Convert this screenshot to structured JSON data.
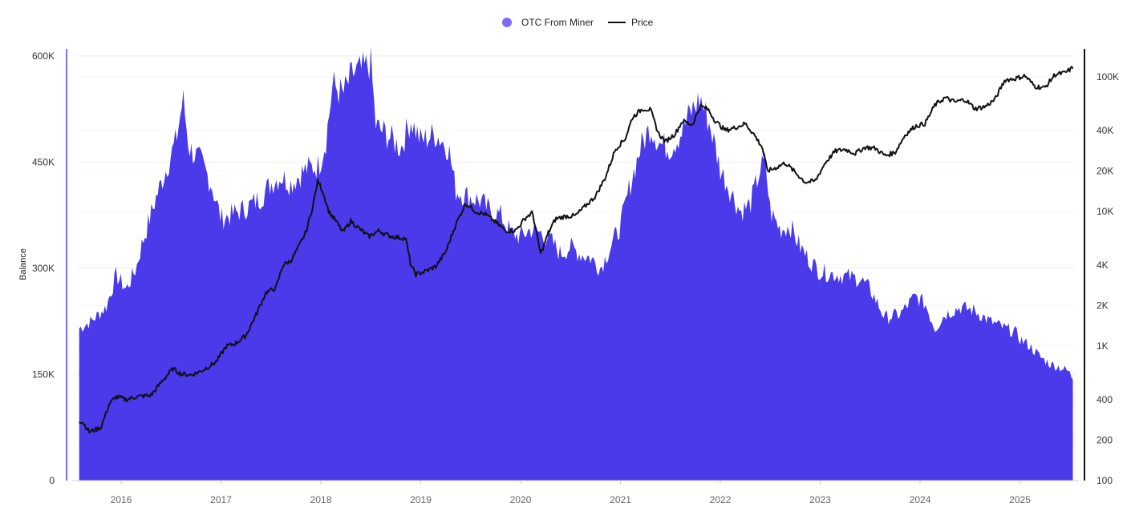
{
  "chart_data": {
    "type": "area",
    "legend": {
      "placement": "top-center",
      "items": [
        {
          "label": "OTC From Miner",
          "marker": "circle",
          "color": "#7b6cf0"
        },
        {
          "label": "Price",
          "marker": "line",
          "color": "#111111"
        }
      ]
    },
    "ylabel": "Balance",
    "y_left": {
      "ticks": [
        0,
        150000,
        300000,
        450000,
        600000
      ],
      "tick_labels": [
        "0",
        "150K",
        "300K",
        "450K",
        "600K"
      ],
      "range": [
        0,
        610000
      ]
    },
    "y_right": {
      "scale": "log",
      "ticks": [
        100,
        200,
        400,
        1000,
        2000,
        4000,
        10000,
        20000,
        40000,
        100000
      ],
      "tick_labels": [
        "100",
        "200",
        "400",
        "1K",
        "2K",
        "4K",
        "10K",
        "20K",
        "40K",
        "100K"
      ]
    },
    "x": {
      "range": [
        2015.55,
        2025.55
      ],
      "ticks": [
        2016,
        2017,
        2018,
        2019,
        2020,
        2021,
        2022,
        2023,
        2024,
        2025
      ],
      "tick_labels": [
        "2016",
        "2017",
        "2018",
        "2019",
        "2020",
        "2021",
        "2022",
        "2023",
        "2024",
        "2025"
      ]
    },
    "grid": true,
    "series": [
      {
        "name": "OTC From Miner",
        "axis": "left",
        "type": "area",
        "color": "#4a3aea",
        "points": [
          [
            2015.58,
            215000
          ],
          [
            2015.7,
            225000
          ],
          [
            2015.85,
            245000
          ],
          [
            2015.95,
            290000
          ],
          [
            2016.05,
            270000
          ],
          [
            2016.15,
            300000
          ],
          [
            2016.2,
            330000
          ],
          [
            2016.35,
            400000
          ],
          [
            2016.45,
            440000
          ],
          [
            2016.55,
            480000
          ],
          [
            2016.62,
            540000
          ],
          [
            2016.68,
            470000
          ],
          [
            2016.8,
            450000
          ],
          [
            2016.9,
            420000
          ],
          [
            2017.0,
            370000
          ],
          [
            2017.1,
            375000
          ],
          [
            2017.25,
            385000
          ],
          [
            2017.4,
            400000
          ],
          [
            2017.5,
            420000
          ],
          [
            2017.6,
            430000
          ],
          [
            2017.7,
            420000
          ],
          [
            2017.85,
            440000
          ],
          [
            2017.98,
            445000
          ],
          [
            2018.05,
            480000
          ],
          [
            2018.12,
            560000
          ],
          [
            2018.22,
            545000
          ],
          [
            2018.32,
            575000
          ],
          [
            2018.42,
            580000
          ],
          [
            2018.5,
            590000
          ],
          [
            2018.55,
            500000
          ],
          [
            2018.65,
            490000
          ],
          [
            2018.8,
            470000
          ],
          [
            2018.9,
            510000
          ],
          [
            2019.0,
            480000
          ],
          [
            2019.15,
            490000
          ],
          [
            2019.28,
            470000
          ],
          [
            2019.35,
            410000
          ],
          [
            2019.5,
            400000
          ],
          [
            2019.6,
            395000
          ],
          [
            2019.7,
            380000
          ],
          [
            2019.8,
            375000
          ],
          [
            2019.9,
            350000
          ],
          [
            2020.0,
            345000
          ],
          [
            2020.1,
            355000
          ],
          [
            2020.2,
            350000
          ],
          [
            2020.3,
            340000
          ],
          [
            2020.4,
            320000
          ],
          [
            2020.5,
            330000
          ],
          [
            2020.6,
            320000
          ],
          [
            2020.7,
            315000
          ],
          [
            2020.8,
            300000
          ],
          [
            2020.9,
            330000
          ],
          [
            2021.0,
            360000
          ],
          [
            2021.1,
            420000
          ],
          [
            2021.2,
            470000
          ],
          [
            2021.3,
            500000
          ],
          [
            2021.4,
            475000
          ],
          [
            2021.5,
            470000
          ],
          [
            2021.6,
            490000
          ],
          [
            2021.7,
            520000
          ],
          [
            2021.8,
            540000
          ],
          [
            2021.9,
            500000
          ],
          [
            2022.0,
            440000
          ],
          [
            2022.1,
            410000
          ],
          [
            2022.2,
            380000
          ],
          [
            2022.3,
            390000
          ],
          [
            2022.4,
            440000
          ],
          [
            2022.45,
            450000
          ],
          [
            2022.5,
            380000
          ],
          [
            2022.6,
            355000
          ],
          [
            2022.7,
            360000
          ],
          [
            2022.8,
            330000
          ],
          [
            2022.9,
            310000
          ],
          [
            2023.0,
            295000
          ],
          [
            2023.2,
            290000
          ],
          [
            2023.4,
            285000
          ],
          [
            2023.5,
            270000
          ],
          [
            2023.65,
            230000
          ],
          [
            2023.8,
            235000
          ],
          [
            2023.95,
            260000
          ],
          [
            2024.05,
            250000
          ],
          [
            2024.15,
            215000
          ],
          [
            2024.25,
            235000
          ],
          [
            2024.4,
            245000
          ],
          [
            2024.55,
            240000
          ],
          [
            2024.7,
            225000
          ],
          [
            2024.85,
            215000
          ],
          [
            2024.95,
            210000
          ],
          [
            2025.0,
            200000
          ],
          [
            2025.1,
            190000
          ],
          [
            2025.2,
            175000
          ],
          [
            2025.3,
            165000
          ],
          [
            2025.4,
            160000
          ],
          [
            2025.48,
            155000
          ],
          [
            2025.53,
            145000
          ]
        ]
      },
      {
        "name": "Price",
        "axis": "right",
        "type": "line",
        "color": "#111111",
        "points": [
          [
            2015.58,
            280
          ],
          [
            2015.62,
            270
          ],
          [
            2015.68,
            230
          ],
          [
            2015.75,
            240
          ],
          [
            2015.8,
            250
          ],
          [
            2015.88,
            370
          ],
          [
            2015.95,
            420
          ],
          [
            2016.05,
            400
          ],
          [
            2016.15,
            420
          ],
          [
            2016.3,
            430
          ],
          [
            2016.42,
            560
          ],
          [
            2016.52,
            680
          ],
          [
            2016.6,
            620
          ],
          [
            2016.7,
            610
          ],
          [
            2016.8,
            650
          ],
          [
            2016.95,
            760
          ],
          [
            2017.05,
            990
          ],
          [
            2017.15,
            1050
          ],
          [
            2017.25,
            1200
          ],
          [
            2017.35,
            1700
          ],
          [
            2017.45,
            2500
          ],
          [
            2017.55,
            2700
          ],
          [
            2017.62,
            4000
          ],
          [
            2017.7,
            4300
          ],
          [
            2017.78,
            5500
          ],
          [
            2017.85,
            7000
          ],
          [
            2017.92,
            11000
          ],
          [
            2017.97,
            17000
          ],
          [
            2018.02,
            14000
          ],
          [
            2018.08,
            10000
          ],
          [
            2018.15,
            8500
          ],
          [
            2018.22,
            7000
          ],
          [
            2018.3,
            8500
          ],
          [
            2018.38,
            7500
          ],
          [
            2018.48,
            6500
          ],
          [
            2018.58,
            7200
          ],
          [
            2018.68,
            6600
          ],
          [
            2018.78,
            6400
          ],
          [
            2018.85,
            6300
          ],
          [
            2018.9,
            4000
          ],
          [
            2018.95,
            3400
          ],
          [
            2019.05,
            3600
          ],
          [
            2019.15,
            3900
          ],
          [
            2019.25,
            5000
          ],
          [
            2019.35,
            8000
          ],
          [
            2019.45,
            11500
          ],
          [
            2019.55,
            10000
          ],
          [
            2019.65,
            9500
          ],
          [
            2019.75,
            8300
          ],
          [
            2019.85,
            7200
          ],
          [
            2019.95,
            7200
          ],
          [
            2020.05,
            9000
          ],
          [
            2020.12,
            9800
          ],
          [
            2020.2,
            4800
          ],
          [
            2020.28,
            7000
          ],
          [
            2020.35,
            8800
          ],
          [
            2020.45,
            9200
          ],
          [
            2020.55,
            9300
          ],
          [
            2020.65,
            11000
          ],
          [
            2020.75,
            13000
          ],
          [
            2020.85,
            18000
          ],
          [
            2020.95,
            29000
          ],
          [
            2021.05,
            35000
          ],
          [
            2021.12,
            50000
          ],
          [
            2021.22,
            58000
          ],
          [
            2021.3,
            57000
          ],
          [
            2021.38,
            38000
          ],
          [
            2021.45,
            33000
          ],
          [
            2021.55,
            38000
          ],
          [
            2021.62,
            47000
          ],
          [
            2021.72,
            44000
          ],
          [
            2021.8,
            61000
          ],
          [
            2021.88,
            57000
          ],
          [
            2021.95,
            47000
          ],
          [
            2022.05,
            40000
          ],
          [
            2022.15,
            42000
          ],
          [
            2022.25,
            45000
          ],
          [
            2022.33,
            38000
          ],
          [
            2022.42,
            30000
          ],
          [
            2022.47,
            20000
          ],
          [
            2022.55,
            21000
          ],
          [
            2022.65,
            23000
          ],
          [
            2022.75,
            19500
          ],
          [
            2022.85,
            16500
          ],
          [
            2022.95,
            16800
          ],
          [
            2023.05,
            23000
          ],
          [
            2023.15,
            28000
          ],
          [
            2023.25,
            29000
          ],
          [
            2023.35,
            27000
          ],
          [
            2023.45,
            30000
          ],
          [
            2023.55,
            29500
          ],
          [
            2023.65,
            26000
          ],
          [
            2023.75,
            27500
          ],
          [
            2023.85,
            37000
          ],
          [
            2023.95,
            43000
          ],
          [
            2024.05,
            45000
          ],
          [
            2024.15,
            62000
          ],
          [
            2024.25,
            70000
          ],
          [
            2024.35,
            65000
          ],
          [
            2024.45,
            68000
          ],
          [
            2024.55,
            58000
          ],
          [
            2024.65,
            60000
          ],
          [
            2024.75,
            68000
          ],
          [
            2024.85,
            95000
          ],
          [
            2024.95,
            97000
          ],
          [
            2025.05,
            102000
          ],
          [
            2025.15,
            85000
          ],
          [
            2025.25,
            83000
          ],
          [
            2025.35,
            104000
          ],
          [
            2025.45,
            107000
          ],
          [
            2025.53,
            117000
          ]
        ]
      }
    ]
  }
}
